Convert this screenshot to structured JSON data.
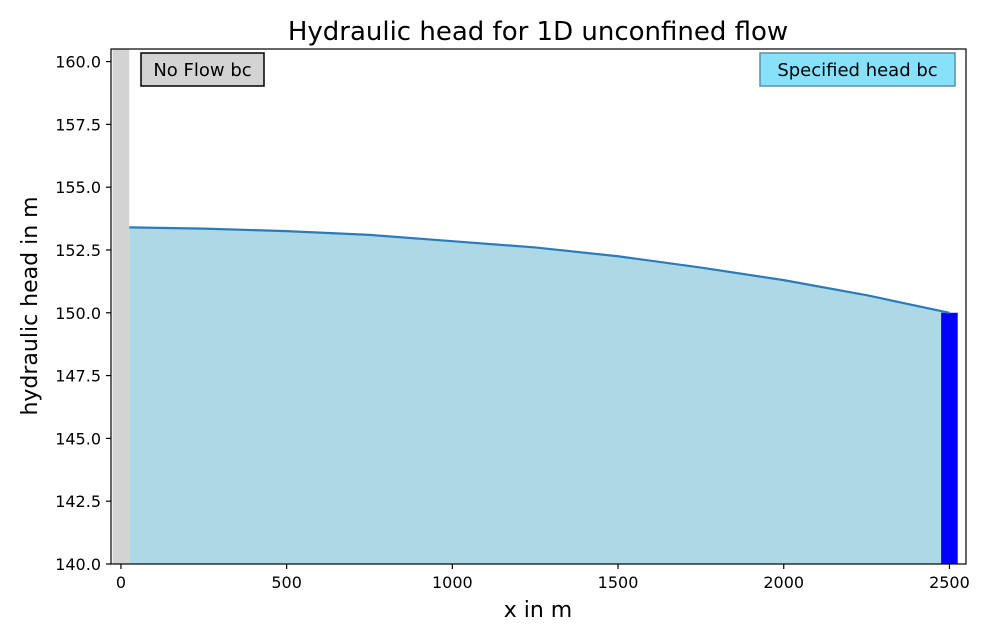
{
  "chart_data": {
    "type": "area",
    "title": "Hydraulic head for 1D unconfined flow",
    "xlabel": "x in m",
    "ylabel": "hydraulic head in m",
    "xlim": [
      -30,
      2550
    ],
    "ylim": [
      140.0,
      160.5
    ],
    "x_ticks": [
      0,
      500,
      1000,
      1500,
      2000,
      2500
    ],
    "x_tick_labels": [
      "0",
      "500",
      "1000",
      "1500",
      "2000",
      "2500"
    ],
    "y_ticks": [
      140.0,
      142.5,
      145.0,
      147.5,
      150.0,
      152.5,
      155.0,
      157.5,
      160.0
    ],
    "y_tick_labels": [
      "140.0",
      "142.5",
      "145.0",
      "147.5",
      "150.0",
      "152.5",
      "155.0",
      "157.5",
      "160.0"
    ],
    "grid": false,
    "series": [
      {
        "x": [
          25,
          250,
          500,
          750,
          1000,
          1250,
          1500,
          1750,
          2000,
          2250,
          2500
        ],
        "y": [
          153.4,
          153.35,
          153.25,
          153.1,
          152.85,
          152.6,
          152.25,
          151.8,
          151.3,
          150.7,
          150.0
        ]
      }
    ],
    "colors": {
      "line": "#2b7bba",
      "fill": "#add8e6",
      "no_flow_bar": "#d3d3d3",
      "specified_head_bar": "#0000ff",
      "specified_head_box": "#87e1fa",
      "no_flow_box": "#d3d3d3"
    },
    "boundary_conditions": {
      "no_flow": {
        "label": "No Flow bc",
        "x_range": [
          -25,
          25
        ],
        "position": "top-left"
      },
      "specified_head": {
        "label": "Specified head bc",
        "x_range": [
          2475,
          2525
        ],
        "head": 150.0,
        "position": "top-right"
      }
    }
  }
}
